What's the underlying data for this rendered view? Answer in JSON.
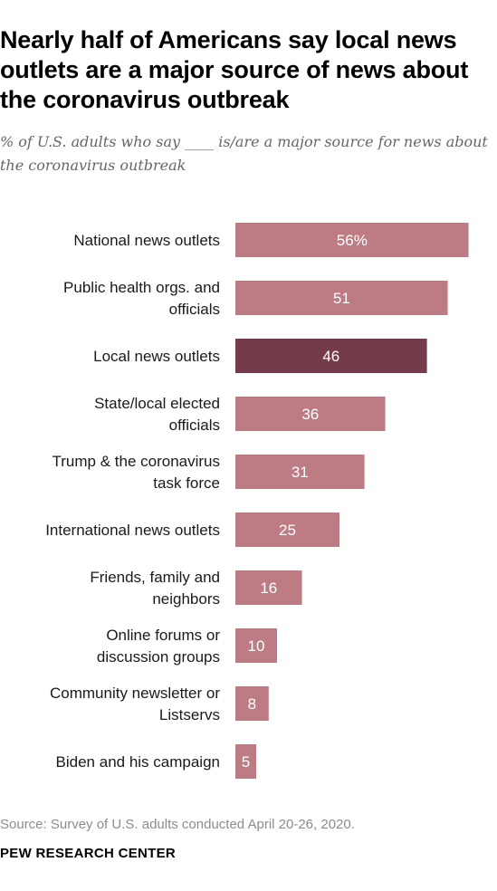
{
  "header": {
    "title": "Nearly half of Americans say local news outlets are a major source of news about the coronavirus outbreak",
    "subtitle": "% of U.S. adults who say ____ is/are a major source for news about the coronavirus outbreak"
  },
  "footer": {
    "source": "Source: Survey of U.S. adults conducted April 20-26, 2020.",
    "org": "PEW RESEARCH CENTER"
  },
  "colors": {
    "bar": "#bd7c84",
    "highlight": "#743c4a",
    "bar_label": "#ffffff",
    "category_label": "#1a1a1a"
  },
  "chart_data": {
    "type": "bar",
    "orientation": "horizontal",
    "categories": [
      [
        "National news outlets"
      ],
      [
        "Public health orgs. and",
        "officials"
      ],
      [
        "Local news outlets"
      ],
      [
        "State/local elected",
        "officials"
      ],
      [
        "Trump & the coronavirus",
        "task force"
      ],
      [
        "International news outlets"
      ],
      [
        "Friends, family and",
        "neighbors"
      ],
      [
        "Online forums or",
        "discussion groups"
      ],
      [
        "Community newsletter or",
        "Listservs"
      ],
      [
        "Biden and his campaign"
      ]
    ],
    "values": [
      56,
      51,
      46,
      36,
      31,
      25,
      16,
      10,
      8,
      5
    ],
    "value_labels": [
      "56%",
      "51",
      "46",
      "36",
      "31",
      "25",
      "16",
      "10",
      "8",
      "5"
    ],
    "highlight_index": 2
  }
}
